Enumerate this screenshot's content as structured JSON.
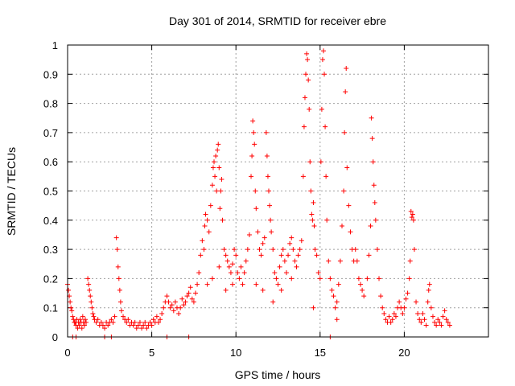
{
  "chart_data": {
    "type": "scatter",
    "title": "Day 301 of 2014, SRMTID for receiver ebre",
    "xlabel": "GPS time / hours",
    "ylabel": "SRMTID / TECUs",
    "xlim": [
      0,
      25
    ],
    "ylim": [
      0,
      1
    ],
    "xticks": [
      0,
      5,
      10,
      15,
      20
    ],
    "xtick_labels": [
      "0",
      "5",
      "10",
      "15",
      "20"
    ],
    "yticks": [
      0,
      0.1,
      0.2,
      0.3,
      0.4,
      0.5,
      0.6,
      0.7,
      0.8,
      0.9,
      1
    ],
    "ytick_labels": [
      "0",
      "0.1",
      "0.2",
      "0.3",
      "0.4",
      "0.5",
      "0.6",
      "0.7",
      "0.8",
      "0.9",
      "1"
    ],
    "grid": true,
    "marker": "+",
    "marker_color": "#ff0000",
    "series": [
      {
        "name": "SRMTID",
        "points": [
          [
            0.0,
            0.18
          ],
          [
            0.05,
            0.16
          ],
          [
            0.1,
            0.14
          ],
          [
            0.15,
            0.12
          ],
          [
            0.2,
            0.1
          ],
          [
            0.25,
            0.09
          ],
          [
            0.3,
            0.07
          ],
          [
            0.35,
            0.06
          ],
          [
            0.4,
            0.05
          ],
          [
            0.45,
            0.05
          ],
          [
            0.5,
            0.04
          ],
          [
            0.55,
            0.06
          ],
          [
            0.6,
            0.03
          ],
          [
            0.65,
            0.05
          ],
          [
            0.7,
            0.04
          ],
          [
            0.75,
            0.06
          ],
          [
            0.8,
            0.05
          ],
          [
            0.85,
            0.03
          ],
          [
            0.9,
            0.07
          ],
          [
            0.95,
            0.05
          ],
          [
            1.0,
            0.04
          ],
          [
            1.05,
            0.06
          ],
          [
            1.1,
            0.05
          ],
          [
            0.3,
            0.0
          ],
          [
            0.5,
            0.0
          ],
          [
            1.2,
            0.2
          ],
          [
            1.25,
            0.18
          ],
          [
            1.3,
            0.16
          ],
          [
            1.35,
            0.14
          ],
          [
            1.4,
            0.12
          ],
          [
            1.45,
            0.1
          ],
          [
            1.5,
            0.08
          ],
          [
            1.55,
            0.07
          ],
          [
            1.6,
            0.06
          ],
          [
            1.7,
            0.05
          ],
          [
            1.8,
            0.06
          ],
          [
            1.9,
            0.04
          ],
          [
            2.0,
            0.05
          ],
          [
            2.1,
            0.04
          ],
          [
            2.2,
            0.03
          ],
          [
            2.3,
            0.05
          ],
          [
            2.4,
            0.04
          ],
          [
            2.5,
            0.05
          ],
          [
            2.6,
            0.06
          ],
          [
            2.7,
            0.05
          ],
          [
            2.8,
            0.07
          ],
          [
            2.2,
            0.0
          ],
          [
            2.6,
            0.0
          ],
          [
            2.9,
            0.34
          ],
          [
            2.95,
            0.3
          ],
          [
            3.0,
            0.24
          ],
          [
            3.05,
            0.2
          ],
          [
            3.1,
            0.16
          ],
          [
            3.15,
            0.12
          ],
          [
            3.2,
            0.09
          ],
          [
            3.3,
            0.07
          ],
          [
            3.4,
            0.06
          ],
          [
            3.5,
            0.05
          ],
          [
            3.6,
            0.06
          ],
          [
            3.7,
            0.04
          ],
          [
            3.8,
            0.05
          ],
          [
            3.9,
            0.04
          ],
          [
            4.0,
            0.05
          ],
          [
            4.1,
            0.03
          ],
          [
            4.2,
            0.04
          ],
          [
            4.3,
            0.05
          ],
          [
            4.4,
            0.03
          ],
          [
            4.5,
            0.04
          ],
          [
            4.6,
            0.05
          ],
          [
            4.7,
            0.03
          ],
          [
            4.8,
            0.04
          ],
          [
            4.9,
            0.05
          ],
          [
            5.0,
            0.04
          ],
          [
            5.1,
            0.06
          ],
          [
            5.2,
            0.05
          ],
          [
            5.3,
            0.07
          ],
          [
            5.4,
            0.05
          ],
          [
            5.5,
            0.06
          ],
          [
            5.6,
            0.08
          ],
          [
            5.7,
            0.1
          ],
          [
            5.8,
            0.12
          ],
          [
            5.9,
            0.14
          ],
          [
            6.0,
            0.12
          ],
          [
            6.1,
            0.1
          ],
          [
            6.2,
            0.11
          ],
          [
            6.3,
            0.09
          ],
          [
            6.4,
            0.12
          ],
          [
            6.5,
            0.1
          ],
          [
            6.6,
            0.08
          ],
          [
            6.7,
            0.1
          ],
          [
            6.8,
            0.13
          ],
          [
            6.9,
            0.11
          ],
          [
            7.0,
            0.12
          ],
          [
            7.1,
            0.14
          ],
          [
            7.2,
            0.15
          ],
          [
            7.3,
            0.17
          ],
          [
            7.4,
            0.13
          ],
          [
            7.5,
            0.12
          ],
          [
            7.6,
            0.15
          ],
          [
            7.7,
            0.18
          ],
          [
            5.9,
            0.0
          ],
          [
            7.2,
            0.0
          ],
          [
            7.8,
            0.22
          ],
          [
            7.9,
            0.28
          ],
          [
            8.0,
            0.33
          ],
          [
            8.1,
            0.3
          ],
          [
            8.15,
            0.38
          ],
          [
            8.2,
            0.42
          ],
          [
            8.3,
            0.4
          ],
          [
            8.4,
            0.36
          ],
          [
            8.5,
            0.45
          ],
          [
            8.6,
            0.52
          ],
          [
            8.65,
            0.58
          ],
          [
            8.7,
            0.6
          ],
          [
            8.75,
            0.55
          ],
          [
            8.8,
            0.62
          ],
          [
            8.85,
            0.5
          ],
          [
            8.9,
            0.64
          ],
          [
            8.95,
            0.66
          ],
          [
            9.0,
            0.58
          ],
          [
            9.05,
            0.44
          ],
          [
            9.1,
            0.5
          ],
          [
            9.15,
            0.54
          ],
          [
            9.2,
            0.4
          ],
          [
            9.3,
            0.3
          ],
          [
            9.4,
            0.28
          ],
          [
            9.5,
            0.26
          ],
          [
            9.6,
            0.24
          ],
          [
            9.7,
            0.22
          ],
          [
            9.8,
            0.25
          ],
          [
            9.9,
            0.3
          ],
          [
            10.0,
            0.28
          ],
          [
            10.1,
            0.22
          ],
          [
            10.2,
            0.2
          ],
          [
            10.3,
            0.24
          ],
          [
            10.4,
            0.18
          ],
          [
            10.5,
            0.22
          ],
          [
            10.6,
            0.26
          ],
          [
            10.7,
            0.3
          ],
          [
            8.3,
            0.18
          ],
          [
            8.6,
            0.2
          ],
          [
            9.0,
            0.24
          ],
          [
            9.4,
            0.16
          ],
          [
            9.8,
            0.18
          ],
          [
            10.8,
            0.35
          ],
          [
            10.9,
            0.55
          ],
          [
            10.95,
            0.62
          ],
          [
            11.0,
            0.74
          ],
          [
            11.05,
            0.7
          ],
          [
            11.1,
            0.66
          ],
          [
            11.15,
            0.5
          ],
          [
            11.2,
            0.44
          ],
          [
            11.3,
            0.36
          ],
          [
            11.4,
            0.3
          ],
          [
            11.5,
            0.28
          ],
          [
            11.6,
            0.32
          ],
          [
            11.7,
            0.34
          ],
          [
            11.8,
            0.7
          ],
          [
            11.85,
            0.62
          ],
          [
            11.9,
            0.55
          ],
          [
            11.95,
            0.5
          ],
          [
            12.0,
            0.45
          ],
          [
            12.05,
            0.4
          ],
          [
            12.1,
            0.36
          ],
          [
            12.2,
            0.3
          ],
          [
            12.3,
            0.22
          ],
          [
            12.4,
            0.2
          ],
          [
            12.5,
            0.18
          ],
          [
            12.6,
            0.24
          ],
          [
            12.7,
            0.28
          ],
          [
            12.8,
            0.3
          ],
          [
            12.9,
            0.26
          ],
          [
            13.0,
            0.22
          ],
          [
            13.1,
            0.28
          ],
          [
            13.2,
            0.32
          ],
          [
            13.3,
            0.34
          ],
          [
            13.4,
            0.3
          ],
          [
            13.5,
            0.26
          ],
          [
            13.6,
            0.24
          ],
          [
            13.7,
            0.28
          ],
          [
            13.8,
            0.3
          ],
          [
            13.9,
            0.33
          ],
          [
            11.2,
            0.18
          ],
          [
            11.6,
            0.16
          ],
          [
            12.2,
            0.12
          ],
          [
            12.7,
            0.16
          ],
          [
            13.3,
            0.2
          ],
          [
            14.0,
            0.55
          ],
          [
            14.05,
            0.72
          ],
          [
            14.1,
            0.82
          ],
          [
            14.15,
            0.9
          ],
          [
            14.2,
            0.97
          ],
          [
            14.25,
            0.95
          ],
          [
            14.3,
            0.88
          ],
          [
            14.35,
            0.78
          ],
          [
            14.4,
            0.6
          ],
          [
            14.45,
            0.5
          ],
          [
            14.5,
            0.42
          ],
          [
            14.55,
            0.4
          ],
          [
            14.6,
            0.46
          ],
          [
            14.65,
            0.38
          ],
          [
            14.7,
            0.3
          ],
          [
            14.8,
            0.28
          ],
          [
            14.9,
            0.22
          ],
          [
            15.0,
            0.2
          ],
          [
            15.05,
            0.6
          ],
          [
            15.1,
            0.78
          ],
          [
            15.15,
            0.95
          ],
          [
            15.2,
            0.98
          ],
          [
            15.25,
            0.9
          ],
          [
            15.3,
            0.72
          ],
          [
            15.35,
            0.55
          ],
          [
            15.4,
            0.4
          ],
          [
            15.5,
            0.26
          ],
          [
            15.6,
            0.2
          ],
          [
            15.7,
            0.16
          ],
          [
            15.8,
            0.14
          ],
          [
            15.9,
            0.1
          ],
          [
            16.0,
            0.12
          ],
          [
            16.1,
            0.18
          ],
          [
            16.2,
            0.26
          ],
          [
            16.3,
            0.38
          ],
          [
            16.4,
            0.5
          ],
          [
            16.45,
            0.7
          ],
          [
            16.5,
            0.84
          ],
          [
            16.55,
            0.92
          ],
          [
            16.6,
            0.58
          ],
          [
            16.7,
            0.45
          ],
          [
            16.8,
            0.36
          ],
          [
            16.9,
            0.3
          ],
          [
            17.0,
            0.26
          ],
          [
            17.1,
            0.3
          ],
          [
            17.2,
            0.26
          ],
          [
            17.3,
            0.2
          ],
          [
            17.4,
            0.18
          ],
          [
            17.5,
            0.16
          ],
          [
            17.6,
            0.14
          ],
          [
            14.6,
            0.1
          ],
          [
            15.6,
            0.0
          ],
          [
            16.0,
            0.06
          ],
          [
            17.8,
            0.2
          ],
          [
            17.9,
            0.28
          ],
          [
            18.0,
            0.38
          ],
          [
            18.05,
            0.75
          ],
          [
            18.1,
            0.68
          ],
          [
            18.15,
            0.6
          ],
          [
            18.2,
            0.52
          ],
          [
            18.25,
            0.46
          ],
          [
            18.3,
            0.4
          ],
          [
            18.4,
            0.3
          ],
          [
            18.5,
            0.2
          ],
          [
            18.6,
            0.14
          ],
          [
            18.7,
            0.1
          ],
          [
            18.8,
            0.08
          ],
          [
            18.9,
            0.06
          ],
          [
            19.0,
            0.05
          ],
          [
            19.1,
            0.07
          ],
          [
            19.2,
            0.05
          ],
          [
            19.3,
            0.06
          ],
          [
            19.4,
            0.08
          ],
          [
            19.5,
            0.07
          ],
          [
            19.6,
            0.1
          ],
          [
            19.7,
            0.12
          ],
          [
            19.8,
            0.1
          ],
          [
            19.9,
            0.08
          ],
          [
            20.0,
            0.1
          ],
          [
            20.1,
            0.13
          ],
          [
            20.2,
            0.15
          ],
          [
            20.3,
            0.2
          ],
          [
            20.35,
            0.26
          ],
          [
            20.4,
            0.43
          ],
          [
            20.45,
            0.41
          ],
          [
            20.5,
            0.42
          ],
          [
            20.55,
            0.4
          ],
          [
            20.6,
            0.3
          ],
          [
            20.7,
            0.12
          ],
          [
            20.8,
            0.08
          ],
          [
            20.9,
            0.06
          ],
          [
            21.0,
            0.05
          ],
          [
            21.1,
            0.08
          ],
          [
            21.2,
            0.06
          ],
          [
            21.3,
            0.04
          ],
          [
            21.4,
            0.12
          ],
          [
            21.45,
            0.16
          ],
          [
            21.5,
            0.18
          ],
          [
            21.6,
            0.1
          ],
          [
            21.7,
            0.07
          ],
          [
            21.8,
            0.05
          ],
          [
            21.9,
            0.04
          ],
          [
            22.0,
            0.06
          ],
          [
            22.1,
            0.05
          ],
          [
            22.2,
            0.04
          ],
          [
            22.3,
            0.07
          ],
          [
            22.4,
            0.09
          ],
          [
            22.5,
            0.06
          ],
          [
            22.6,
            0.05
          ],
          [
            22.7,
            0.04
          ]
        ]
      }
    ]
  }
}
